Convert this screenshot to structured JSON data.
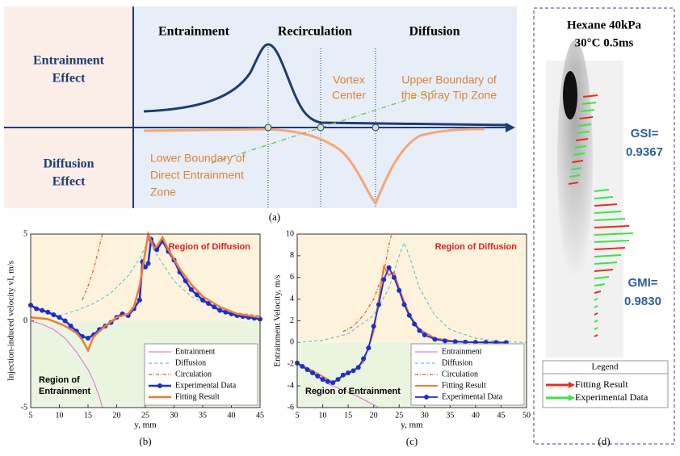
{
  "schematic": {
    "left_labels": [
      [
        "Entrainment",
        "Effect"
      ],
      [
        "Diffusion",
        "Effect"
      ]
    ],
    "zones": [
      "Entrainment",
      "Recirculation",
      "Diffusion"
    ],
    "annotations": [
      [
        "Vortex",
        "Center"
      ],
      [
        "Upper Boundary of",
        "the Spray Tip Zone"
      ],
      [
        "Lower Boundary of",
        "Direct Entrainment",
        "Zone"
      ]
    ],
    "label": "(a)"
  },
  "chart_data": [
    {
      "type": "line",
      "label": "(b)",
      "xlabel": "y, mm",
      "ylabel": "Injection-induced velocity vI, m/s",
      "xlim": [
        5,
        45
      ],
      "xticks": [
        5,
        10,
        15,
        20,
        25,
        30,
        35,
        40,
        45
      ],
      "ylim": [
        -5,
        5
      ],
      "yticks": [
        -5,
        0,
        5
      ],
      "above_color": "#fdf3dc",
      "below_color": "#eaf5e0",
      "legend": "lower right",
      "annotations": [
        {
          "text": "Region of Diffusion",
          "color": "#e02020",
          "corner": "upper right"
        },
        {
          "text": [
            "Region of",
            "Entrainment"
          ],
          "color": "#000000",
          "corner": "lower left"
        }
      ],
      "series": [
        {
          "name": "Entrainment",
          "color": "#e27fd6",
          "dash": "",
          "width": 1.2,
          "x": [
            5,
            7,
            9,
            11,
            13,
            15,
            16,
            17,
            17.5
          ],
          "values": [
            0,
            -0.2,
            -0.5,
            -1.0,
            -1.8,
            -2.8,
            -3.5,
            -4.4,
            -5
          ]
        },
        {
          "name": "Diffusion",
          "color": "#6cc3d9",
          "dash": "4 3",
          "width": 1.2,
          "x": [
            10,
            13,
            16,
            19,
            22,
            24,
            25.5,
            27,
            30,
            33,
            36,
            40,
            45
          ],
          "values": [
            0.3,
            0.6,
            1.0,
            1.6,
            2.6,
            3.6,
            4.6,
            3.8,
            2.3,
            1.4,
            0.9,
            0.5,
            0.3
          ]
        },
        {
          "name": "Circulation",
          "color": "#e8532b",
          "dash": "4 2 1 2",
          "width": 1.2,
          "x": [
            14,
            15,
            16,
            17,
            17.5
          ],
          "values": [
            1.2,
            2.0,
            3.0,
            4.3,
            5
          ]
        },
        {
          "name": "Experimental Data",
          "color": "#1a2fd0",
          "dash": "",
          "width": 2.5,
          "markers": true,
          "x": [
            5,
            6,
            7,
            8,
            9,
            10,
            11,
            12,
            13,
            14,
            15,
            16,
            17,
            18,
            19,
            20,
            21,
            22,
            23,
            24,
            24.5,
            25,
            25.5,
            26,
            27,
            28,
            29,
            30,
            31,
            32,
            33,
            34,
            35,
            36,
            37,
            38,
            39,
            40,
            41,
            42,
            43,
            44,
            45
          ],
          "values": [
            0.9,
            0.7,
            0.6,
            0.5,
            0.35,
            0.2,
            0,
            -0.3,
            -0.6,
            -0.9,
            -1.0,
            -0.8,
            -0.5,
            -0.3,
            -0.1,
            0.2,
            0.4,
            0.3,
            0.7,
            1.2,
            3.4,
            3.1,
            3.3,
            4.7,
            4.1,
            4.6,
            4.0,
            3.5,
            2.8,
            2.3,
            1.8,
            1.5,
            1.2,
            1.0,
            0.8,
            0.6,
            0.5,
            0.4,
            0.3,
            0.25,
            0.2,
            0.15,
            0.1
          ]
        },
        {
          "name": "Fitting Result",
          "color": "#f07a3a",
          "dash": "",
          "width": 2.5,
          "x": [
            5,
            8,
            11,
            13,
            14,
            15,
            16,
            18,
            20,
            22,
            23,
            24,
            25,
            25.5,
            26.5,
            27,
            28,
            29,
            31,
            33,
            35,
            38,
            41,
            45
          ],
          "values": [
            0.2,
            0.1,
            -0.3,
            -0.7,
            -1.1,
            -1.7,
            -0.9,
            -0.3,
            0.2,
            0.4,
            0.8,
            2.0,
            4.0,
            5.0,
            4.2,
            4.3,
            4.8,
            4.1,
            3.0,
            2.1,
            1.4,
            0.8,
            0.4,
            0.2
          ]
        }
      ]
    },
    {
      "type": "line",
      "label": "(c)",
      "xlabel": "y, mm",
      "ylabel": "Entrainment Velocity, m/s",
      "xlim": [
        5,
        50
      ],
      "xticks": [
        5,
        10,
        15,
        20,
        25,
        30,
        35,
        40,
        45,
        50
      ],
      "ylim": [
        -6,
        10
      ],
      "yticks": [
        -6,
        -4,
        -2,
        0,
        2,
        4,
        6,
        8,
        10
      ],
      "above_color": "#fdf3dc",
      "below_color": "#eaf5e0",
      "legend": "lower right",
      "annotations": [
        {
          "text": "Region of Diffusion",
          "color": "#e02020",
          "corner": "upper right"
        },
        {
          "text": [
            "Region of Entrainment"
          ],
          "color": "#000000",
          "corner": "lower left"
        }
      ],
      "series": [
        {
          "name": "Entrainment",
          "color": "#e27fd6",
          "dash": "",
          "width": 1.2,
          "x": [
            5,
            8,
            11,
            14,
            17,
            19,
            21
          ],
          "values": [
            -2.0,
            -2.8,
            -3.8,
            -4.4,
            -5.0,
            -5.5,
            -6
          ]
        },
        {
          "name": "Diffusion",
          "color": "#6cc3d9",
          "dash": "4 3",
          "width": 1.2,
          "x": [
            5,
            10,
            15,
            20,
            23,
            25,
            26,
            27,
            29,
            32,
            35,
            40,
            45,
            50
          ],
          "values": [
            0,
            0.2,
            0.8,
            2.5,
            5,
            8,
            9.2,
            8,
            5,
            2.5,
            1.2,
            0.4,
            0.1,
            0
          ]
        },
        {
          "name": "Circulation",
          "color": "#e8532b",
          "dash": "4 2 1 2",
          "width": 1.2,
          "x": [
            14,
            16,
            18,
            20,
            22,
            23,
            23.5
          ],
          "values": [
            1,
            1.5,
            2.5,
            4,
            6.5,
            9,
            10
          ]
        },
        {
          "name": "Fitting Result",
          "color": "#f07a3a",
          "dash": "",
          "width": 2,
          "x": [
            5,
            8,
            11,
            12,
            14,
            16,
            18,
            20,
            21,
            22,
            23,
            24,
            25,
            27,
            29,
            32,
            36,
            40,
            46
          ],
          "values": [
            -1.9,
            -2.6,
            -3.4,
            -3.7,
            -3.1,
            -2.6,
            -1.8,
            1.0,
            4.0,
            7.0,
            6.2,
            6.5,
            5.0,
            2.6,
            1.2,
            0.4,
            0.1,
            0.03,
            0
          ]
        },
        {
          "name": "Experimental Data",
          "color": "#1a2fd0",
          "dash": "",
          "width": 1.8,
          "markers": true,
          "x": [
            5,
            6,
            7,
            8,
            9,
            10,
            11,
            12,
            13,
            14,
            15,
            16,
            17,
            18,
            19,
            20,
            21,
            22,
            23,
            24,
            25,
            26,
            27,
            28,
            29,
            30,
            32,
            34,
            36,
            38,
            40,
            42,
            44,
            46
          ],
          "values": [
            -1.9,
            -2.2,
            -2.5,
            -2.8,
            -3.1,
            -3.4,
            -3.6,
            -3.7,
            -3.4,
            -3.0,
            -2.8,
            -2.6,
            -2.3,
            -1.5,
            -0.5,
            1.5,
            3.5,
            5.8,
            6.9,
            6.0,
            4.8,
            3.5,
            2.5,
            1.7,
            1.1,
            0.7,
            0.3,
            0.15,
            0.08,
            0.04,
            0.02,
            0.01,
            0,
            0
          ]
        }
      ]
    }
  ],
  "panel_d": {
    "title": [
      "Hexane 40kPa",
      "30°C 0.5ms"
    ],
    "gsi": [
      "GSI=",
      "0.9367"
    ],
    "gmi": [
      "GMI=",
      "0.9830"
    ],
    "legend_title": "Legend",
    "legend": [
      {
        "name": "Fitting Result",
        "color": "#e03020"
      },
      {
        "name": "Experimental Data",
        "color": "#3ee04a"
      }
    ],
    "label": "(d)"
  }
}
